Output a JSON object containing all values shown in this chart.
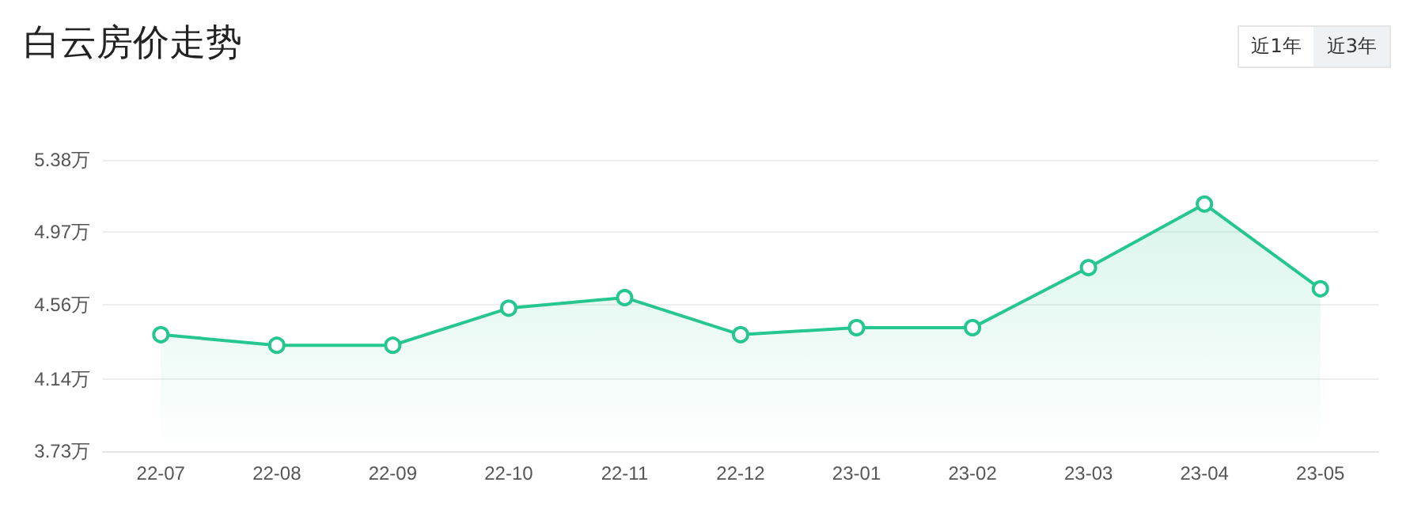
{
  "chart_data": {
    "type": "area",
    "title": "白云房价走势",
    "categories": [
      "22-07",
      "22-08",
      "22-09",
      "22-10",
      "22-11",
      "22-12",
      "23-01",
      "23-02",
      "23-03",
      "23-04",
      "23-05"
    ],
    "series": [
      {
        "color": "#26c68f",
        "values": [
          4.39,
          4.33,
          4.33,
          4.54,
          4.6,
          4.39,
          4.43,
          4.43,
          4.77,
          5.13,
          4.65
        ]
      }
    ],
    "ylim": [
      3.73,
      5.38
    ],
    "yticks": [
      {
        "value": 3.73,
        "label": "3.73万"
      },
      {
        "value": 4.14,
        "label": "4.14万"
      },
      {
        "value": 4.56,
        "label": "4.56万"
      },
      {
        "value": 4.97,
        "label": "4.97万"
      },
      {
        "value": 5.38,
        "label": "5.38万"
      }
    ],
    "grid": "y",
    "marker": "circle",
    "line_style": "solid",
    "annotations": [
      "近1年",
      "近3年"
    ]
  }
}
